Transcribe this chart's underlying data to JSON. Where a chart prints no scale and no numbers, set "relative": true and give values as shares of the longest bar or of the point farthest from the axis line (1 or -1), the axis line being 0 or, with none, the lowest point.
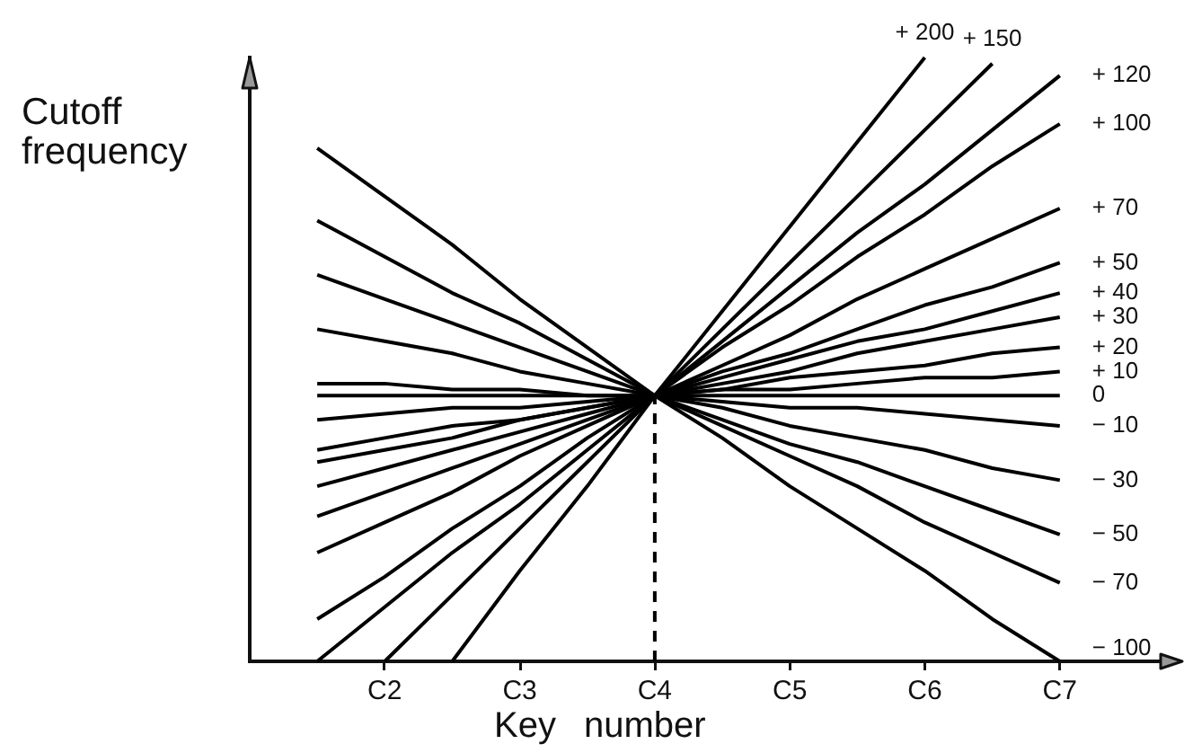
{
  "chart_data": {
    "type": "line",
    "relative": true,
    "xlabel": "Key number",
    "ylabel": "Cutoff frequency",
    "categories": [
      null,
      null,
      "C2",
      null,
      "C3",
      null,
      "C4",
      null,
      "C5",
      null,
      "C6",
      null,
      "C7"
    ],
    "series": [
      {
        "name": "+ 200",
        "color": "#000000",
        "values": [
          null,
          null,
          null,
          0,
          0.15,
          0.29,
          0.44,
          0.58,
          0.72,
          0.86,
          1,
          null,
          null
        ]
      },
      {
        "name": "+ 150",
        "color": "#000000",
        "values": [
          null,
          null,
          0,
          0.11,
          0.22,
          0.33,
          0.44,
          0.55,
          0.66,
          0.77,
          0.88,
          0.99,
          null
        ]
      },
      {
        "name": "+ 120",
        "color": "#000000",
        "values": [
          null,
          0,
          0.09,
          0.18,
          0.26,
          0.35,
          0.44,
          0.53,
          0.62,
          0.71,
          0.79,
          0.88,
          0.97
        ]
      },
      {
        "name": "+ 100",
        "color": "#000000",
        "values": [
          null,
          0.07,
          0.14,
          0.22,
          0.29,
          0.37,
          0.44,
          0.52,
          0.59,
          0.67,
          0.74,
          0.82,
          0.89
        ]
      },
      {
        "name": "+ 70",
        "color": "#000000",
        "values": [
          null,
          0.18,
          0.23,
          0.28,
          0.34,
          0.39,
          0.44,
          0.49,
          0.54,
          0.6,
          0.65,
          0.7,
          0.75
        ]
      },
      {
        "name": "+ 50",
        "color": "#000000",
        "values": [
          null,
          0.24,
          0.28,
          0.32,
          0.36,
          0.4,
          0.44,
          0.48,
          0.51,
          0.55,
          0.59,
          0.62,
          0.66
        ]
      },
      {
        "name": "+ 40",
        "color": "#000000",
        "values": [
          null,
          0.29,
          0.32,
          0.35,
          0.38,
          0.41,
          0.44,
          0.47,
          0.5,
          0.53,
          0.55,
          0.58,
          0.61
        ]
      },
      {
        "name": "+ 30",
        "color": "#000000",
        "values": [
          null,
          0.33,
          0.35,
          0.37,
          0.4,
          0.42,
          0.44,
          0.46,
          0.48,
          0.51,
          0.53,
          0.55,
          0.57
        ]
      },
      {
        "name": "+ 20",
        "color": "#000000",
        "values": [
          null,
          0.35,
          0.37,
          0.39,
          0.4,
          0.42,
          0.44,
          0.45,
          0.47,
          0.48,
          0.49,
          0.51,
          0.52
        ]
      },
      {
        "name": "+ 10",
        "color": "#000000",
        "values": [
          null,
          0.4,
          0.41,
          0.42,
          0.42,
          0.43,
          0.44,
          0.45,
          0.45,
          0.46,
          0.47,
          0.47,
          0.48
        ]
      },
      {
        "name": "0",
        "color": "#000000",
        "values": [
          null,
          0.44,
          0.44,
          0.44,
          0.44,
          0.44,
          0.44,
          0.44,
          0.44,
          0.44,
          0.44,
          0.44,
          0.44
        ]
      },
      {
        "name": "− 10",
        "color": "#000000",
        "values": [
          null,
          0.46,
          0.46,
          0.45,
          0.45,
          0.44,
          0.44,
          0.43,
          0.42,
          0.42,
          0.41,
          0.4,
          0.39
        ]
      },
      {
        "name": "− 30",
        "color": "#000000",
        "values": [
          null,
          0.55,
          0.53,
          0.51,
          0.48,
          0.46,
          0.44,
          0.42,
          0.39,
          0.37,
          0.35,
          0.32,
          0.3
        ]
      },
      {
        "name": "− 50",
        "color": "#000000",
        "values": [
          null,
          0.64,
          0.6,
          0.56,
          0.52,
          0.48,
          0.44,
          0.4,
          0.36,
          0.33,
          0.29,
          0.25,
          0.21
        ]
      },
      {
        "name": "− 70",
        "color": "#000000",
        "values": [
          null,
          0.73,
          0.67,
          0.61,
          0.56,
          0.5,
          0.44,
          0.39,
          0.34,
          0.29,
          0.23,
          0.18,
          0.13
        ]
      },
      {
        "name": "− 100",
        "color": "#000000",
        "values": [
          null,
          0.85,
          0.77,
          0.69,
          0.6,
          0.52,
          0.44,
          0.37,
          0.29,
          0.22,
          0.15,
          0.07,
          0
        ]
      }
    ],
    "ref_lines": [
      {
        "axis": "x",
        "value": "C4",
        "color": "#000000",
        "line_style": "dashed"
      }
    ]
  }
}
